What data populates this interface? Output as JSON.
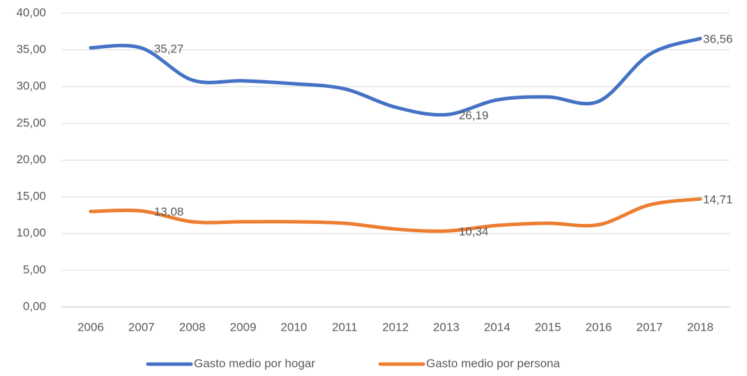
{
  "chart_data": {
    "type": "line",
    "categories": [
      "2006",
      "2007",
      "2008",
      "2009",
      "2010",
      "2011",
      "2012",
      "2013",
      "2014",
      "2015",
      "2016",
      "2017",
      "2018"
    ],
    "series": [
      {
        "name": "Gasto medio por hogar",
        "color": "#4472c4",
        "values": [
          35.3,
          35.27,
          30.9,
          30.8,
          30.4,
          29.7,
          27.2,
          26.19,
          28.2,
          28.6,
          28.0,
          34.4,
          36.56
        ],
        "value_labels": [
          null,
          "35,27",
          null,
          null,
          null,
          null,
          null,
          "26,19",
          null,
          null,
          null,
          null,
          "36,56"
        ]
      },
      {
        "name": "Gasto medio por persona",
        "color": "#ed7d31",
        "values": [
          13.0,
          13.08,
          11.6,
          11.6,
          11.6,
          11.4,
          10.6,
          10.34,
          11.1,
          11.4,
          11.2,
          13.9,
          14.71
        ],
        "value_labels": [
          null,
          "13,08",
          null,
          null,
          null,
          null,
          null,
          "10,34",
          null,
          null,
          null,
          null,
          "14,71"
        ]
      }
    ],
    "ylim": [
      0,
      40
    ],
    "yticks": [
      {
        "value": 0,
        "label": "0,00"
      },
      {
        "value": 5,
        "label": "5,00"
      },
      {
        "value": 10,
        "label": "10,00"
      },
      {
        "value": 15,
        "label": "15,00"
      },
      {
        "value": 20,
        "label": "20,00"
      },
      {
        "value": 25,
        "label": "25,00"
      },
      {
        "value": 30,
        "label": "30,00"
      },
      {
        "value": 35,
        "label": "35,00"
      },
      {
        "value": 40,
        "label": "40,00"
      }
    ],
    "grid": true,
    "legend": "bottom"
  }
}
